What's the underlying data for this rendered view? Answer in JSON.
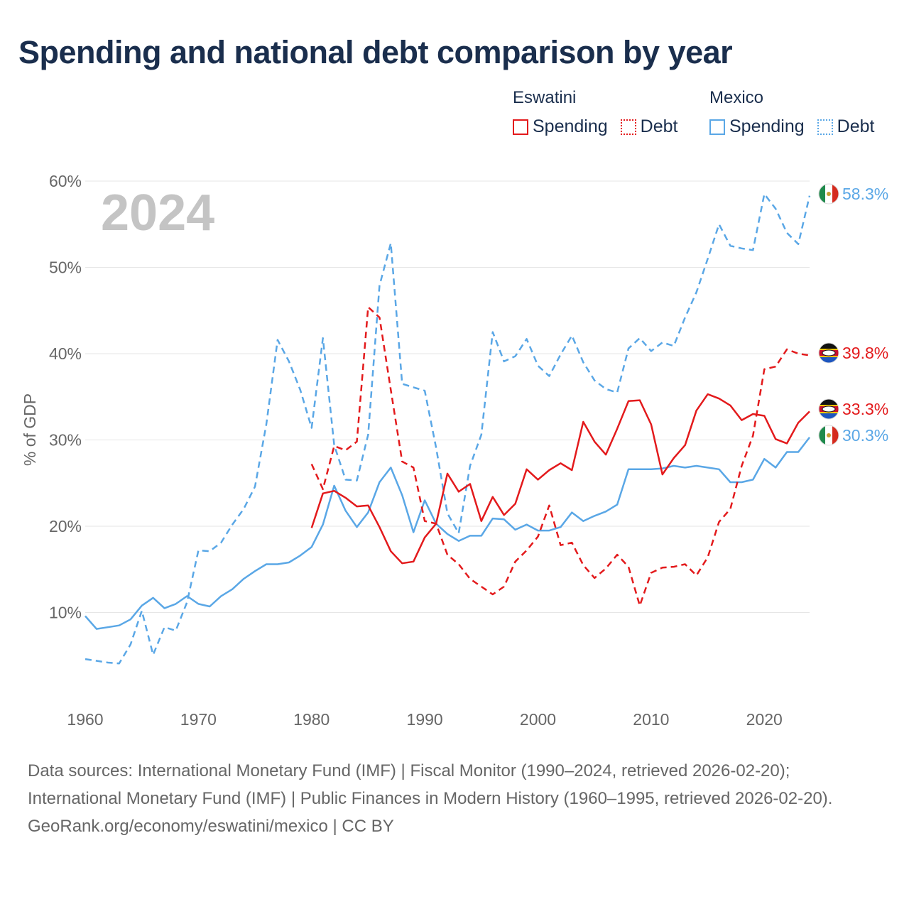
{
  "title": "Spending and national debt comparison by year",
  "legend": {
    "eswatini": {
      "label": "Eswatini",
      "spending": "Spending",
      "debt": "Debt"
    },
    "mexico": {
      "label": "Mexico",
      "spending": "Spending",
      "debt": "Debt"
    }
  },
  "colors": {
    "eswatini": "#e31a1c",
    "mexico": "#5aa7e6",
    "grid": "#e6e6e6",
    "axis_text": "#666666",
    "year_watermark": "#c4c4c4"
  },
  "year_watermark": "2024",
  "end_labels": [
    {
      "series": "mexico_debt",
      "text": "58.3%",
      "value": 58.3,
      "color": "#5aa7e6",
      "flag": "mexico-flag-icon"
    },
    {
      "series": "eswatini_debt",
      "text": "39.8%",
      "value": 39.8,
      "color": "#e31a1c",
      "flag": "eswatini-flag-icon"
    },
    {
      "series": "eswatini_spending",
      "text": "33.3%",
      "value": 33.3,
      "color": "#e31a1c",
      "flag": "eswatini-flag-icon"
    },
    {
      "series": "mexico_spending",
      "text": "30.3%",
      "value": 30.3,
      "color": "#5aa7e6",
      "flag": "mexico-flag-icon"
    }
  ],
  "chart_data": {
    "type": "line",
    "title": "Spending and national debt comparison by year",
    "xlabel": "",
    "ylabel": "% of GDP",
    "xlim": [
      1960,
      2024
    ],
    "ylim": [
      0,
      60
    ],
    "x_ticks": [
      1960,
      1970,
      1980,
      1990,
      2000,
      2010,
      2020
    ],
    "y_ticks": [
      10,
      20,
      30,
      40,
      50,
      60
    ],
    "y_tick_labels": [
      "10%",
      "20%",
      "30%",
      "40%",
      "50%",
      "60%"
    ],
    "grid": true,
    "series": [
      {
        "name": "Mexico Debt",
        "country": "Mexico",
        "metric": "Debt",
        "style": "dashed",
        "x": [
          1960,
          1961,
          1962,
          1963,
          1964,
          1965,
          1966,
          1967,
          1968,
          1969,
          1970,
          1971,
          1972,
          1973,
          1974,
          1975,
          1976,
          1977,
          1978,
          1979,
          1980,
          1981,
          1982,
          1983,
          1984,
          1985,
          1986,
          1987,
          1988,
          1989,
          1990,
          1991,
          1992,
          1993,
          1994,
          1995,
          1996,
          1997,
          1998,
          1999,
          2000,
          2001,
          2002,
          2003,
          2004,
          2005,
          2006,
          2007,
          2008,
          2009,
          2010,
          2011,
          2012,
          2013,
          2014,
          2015,
          2016,
          2017,
          2018,
          2019,
          2020,
          2021,
          2022,
          2023,
          2024
        ],
        "values": [
          4.6,
          4.4,
          4.2,
          4.1,
          6.3,
          10.2,
          5.1,
          8.3,
          7.9,
          11.2,
          17.2,
          17.1,
          18.1,
          20.2,
          22.0,
          24.6,
          31.8,
          41.6,
          39.1,
          35.8,
          31.4,
          41.8,
          29.4,
          25.4,
          25.3,
          30.6,
          47.9,
          52.8,
          36.5,
          36.1,
          35.7,
          29.1,
          21.5,
          19.2,
          27.0,
          30.6,
          42.5,
          39.1,
          39.7,
          41.7,
          38.6,
          37.4,
          39.9,
          42.1,
          39.0,
          36.9,
          35.9,
          35.5,
          40.6,
          41.8,
          40.3,
          41.3,
          40.9,
          44.2,
          47.1,
          51.0,
          55.0,
          52.5,
          52.2,
          52.0,
          58.5,
          56.8,
          54.0,
          52.7,
          58.3
        ]
      },
      {
        "name": "Mexico Spending",
        "country": "Mexico",
        "metric": "Spending",
        "style": "solid",
        "x": [
          1960,
          1961,
          1962,
          1963,
          1964,
          1965,
          1966,
          1967,
          1968,
          1969,
          1970,
          1971,
          1972,
          1973,
          1974,
          1975,
          1976,
          1977,
          1978,
          1979,
          1980,
          1981,
          1982,
          1983,
          1984,
          1985,
          1986,
          1987,
          1988,
          1989,
          1990,
          1991,
          1992,
          1993,
          1994,
          1995,
          1996,
          1997,
          1998,
          1999,
          2000,
          2001,
          2002,
          2003,
          2004,
          2005,
          2006,
          2007,
          2008,
          2009,
          2010,
          2011,
          2012,
          2013,
          2014,
          2015,
          2016,
          2017,
          2018,
          2019,
          2020,
          2021,
          2022,
          2023,
          2024
        ],
        "values": [
          9.6,
          8.1,
          8.3,
          8.5,
          9.2,
          10.8,
          11.7,
          10.5,
          11.0,
          11.9,
          11.0,
          10.7,
          11.9,
          12.7,
          13.9,
          14.8,
          15.6,
          15.6,
          15.8,
          16.6,
          17.6,
          20.2,
          24.7,
          21.8,
          19.9,
          21.6,
          25.1,
          26.8,
          23.6,
          19.3,
          23.0,
          20.3,
          19.1,
          18.3,
          18.9,
          18.9,
          20.9,
          20.8,
          19.6,
          20.2,
          19.5,
          19.5,
          19.9,
          21.6,
          20.6,
          21.2,
          21.7,
          22.5,
          26.6,
          26.6,
          26.6,
          26.7,
          27.0,
          26.8,
          27.0,
          26.8,
          26.6,
          25.1,
          25.1,
          25.4,
          27.8,
          26.8,
          28.6,
          28.6,
          30.3
        ]
      },
      {
        "name": "Eswatini Debt",
        "country": "Eswatini",
        "metric": "Debt",
        "style": "dashed",
        "x": [
          1980,
          1981,
          1982,
          1983,
          1984,
          1985,
          1986,
          1987,
          1988,
          1989,
          1990,
          1991,
          1992,
          1993,
          1994,
          1995,
          1996,
          1997,
          1998,
          1999,
          2000,
          2001,
          2002,
          2003,
          2004,
          2005,
          2006,
          2007,
          2008,
          2009,
          2010,
          2011,
          2012,
          2013,
          2014,
          2015,
          2016,
          2017,
          2018,
          2019,
          2020,
          2021,
          2022,
          2023,
          2024
        ],
        "values": [
          27.2,
          24.3,
          29.3,
          28.8,
          29.8,
          45.4,
          44.2,
          35.8,
          27.5,
          26.8,
          20.6,
          20.3,
          16.7,
          15.6,
          13.9,
          13.0,
          12.1,
          13.0,
          15.9,
          17.2,
          18.8,
          22.4,
          17.8,
          18.1,
          15.5,
          14.0,
          15.1,
          16.7,
          15.3,
          10.8,
          14.6,
          15.2,
          15.3,
          15.6,
          14.3,
          16.4,
          20.5,
          22.0,
          27.0,
          30.5,
          38.2,
          38.5,
          40.5,
          40.0,
          39.8
        ]
      },
      {
        "name": "Eswatini Spending",
        "country": "Eswatini",
        "metric": "Spending",
        "style": "solid",
        "x": [
          1980,
          1981,
          1982,
          1983,
          1984,
          1985,
          1986,
          1987,
          1988,
          1989,
          1990,
          1991,
          1992,
          1993,
          1994,
          1995,
          1996,
          1997,
          1998,
          1999,
          2000,
          2001,
          2002,
          2003,
          2004,
          2005,
          2006,
          2007,
          2008,
          2009,
          2010,
          2011,
          2012,
          2013,
          2014,
          2015,
          2016,
          2017,
          2018,
          2019,
          2020,
          2021,
          2022,
          2023,
          2024
        ],
        "values": [
          19.8,
          23.8,
          24.1,
          23.3,
          22.3,
          22.4,
          19.9,
          17.1,
          15.7,
          15.9,
          18.7,
          20.3,
          26.1,
          24.0,
          24.9,
          20.6,
          23.4,
          21.3,
          22.6,
          26.6,
          25.4,
          26.5,
          27.3,
          26.5,
          32.1,
          29.8,
          28.3,
          31.3,
          34.5,
          34.6,
          31.8,
          26.0,
          27.9,
          29.4,
          33.4,
          35.3,
          34.8,
          34.0,
          32.3,
          33.0,
          32.8,
          30.1,
          29.6,
          32.0,
          33.3
        ]
      }
    ]
  },
  "footer": {
    "sources": "Data sources: International Monetary Fund (IMF) | Fiscal Monitor (1990–2024, retrieved 2026-02-20); International Monetary Fund (IMF) | Public Finances in Modern History (1960–1995, retrieved 2026-02-20).",
    "credit": "GeoRank.org/economy/eswatini/mexico | CC BY"
  }
}
